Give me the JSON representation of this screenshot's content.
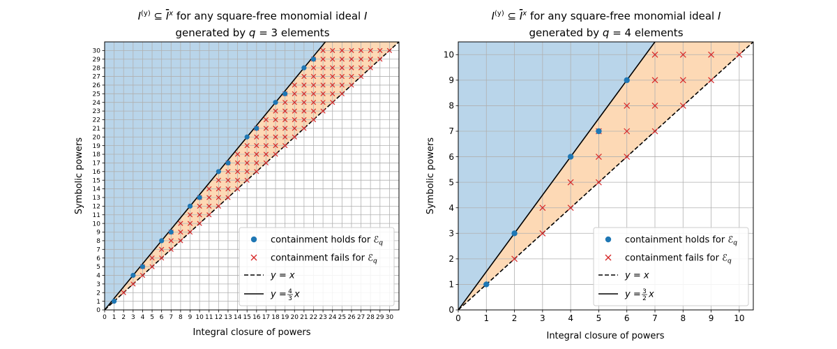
{
  "chart_data": [
    {
      "type": "scatter",
      "title": "I^(y) ⊆ Ī^x for any square-free monomial ideal I",
      "title_line2": "generated by q = 3 elements",
      "xlabel": "Integral closure of powers",
      "ylabel": "Symbolic powers",
      "xlim": [
        0,
        31
      ],
      "ylim": [
        0,
        31
      ],
      "xticks": [
        0,
        1,
        2,
        3,
        4,
        5,
        6,
        7,
        8,
        9,
        10,
        11,
        12,
        13,
        14,
        15,
        16,
        17,
        18,
        19,
        20,
        21,
        22,
        23,
        24,
        25,
        26,
        27,
        28,
        29,
        30
      ],
      "yticks": [
        0,
        1,
        2,
        3,
        4,
        5,
        6,
        7,
        8,
        9,
        10,
        11,
        12,
        13,
        14,
        15,
        16,
        17,
        18,
        19,
        20,
        21,
        22,
        23,
        24,
        25,
        26,
        27,
        28,
        29,
        30
      ],
      "grid": true,
      "legend_position": "lower right",
      "lines": [
        {
          "name": "y = x",
          "slope_num": 1,
          "slope_den": 1,
          "style": "dashed",
          "color": "#000000"
        },
        {
          "name": "y = 4/3 x",
          "slope_num": 4,
          "slope_den": 3,
          "style": "solid",
          "color": "#000000"
        }
      ],
      "regions": {
        "above_steep": "#b9d5ea",
        "between_lines": "#fdd9b5"
      },
      "series": [
        {
          "name": "containment holds for E_q",
          "marker": "circle",
          "color": "#1f77b4",
          "points": [
            [
              1,
              1
            ],
            [
              3,
              4
            ],
            [
              4,
              5
            ],
            [
              6,
              8
            ],
            [
              7,
              9
            ],
            [
              9,
              12
            ],
            [
              10,
              13
            ],
            [
              12,
              16
            ],
            [
              13,
              17
            ],
            [
              15,
              20
            ],
            [
              16,
              21
            ],
            [
              18,
              24
            ],
            [
              19,
              25
            ],
            [
              21,
              28
            ],
            [
              22,
              29
            ]
          ]
        },
        {
          "name": "containment fails for E_q",
          "marker": "x",
          "color": "#d62728",
          "rule": "all integer (x, y) with x >= 2, x <= y < 4x/3, y <= 30"
        }
      ]
    },
    {
      "type": "scatter",
      "title": "I^(y) ⊆ Ī^x for any square-free monomial ideal I",
      "title_line2": "generated by q = 4 elements",
      "xlabel": "Integral closure of powers",
      "ylabel": "Symbolic powers",
      "xlim": [
        0,
        10.5
      ],
      "ylim": [
        0,
        10.5
      ],
      "xticks": [
        0,
        1,
        2,
        3,
        4,
        5,
        6,
        7,
        8,
        9,
        10
      ],
      "yticks": [
        0,
        1,
        2,
        3,
        4,
        5,
        6,
        7,
        8,
        9,
        10
      ],
      "grid": true,
      "legend_position": "lower right",
      "lines": [
        {
          "name": "y = x",
          "slope_num": 1,
          "slope_den": 1,
          "style": "dashed",
          "color": "#000000"
        },
        {
          "name": "y = 3/2 x",
          "slope_num": 3,
          "slope_den": 2,
          "style": "solid",
          "color": "#000000"
        }
      ],
      "regions": {
        "above_steep": "#b9d5ea",
        "between_lines": "#fdd9b5"
      },
      "series": [
        {
          "name": "containment holds for E_q",
          "marker": "circle",
          "color": "#1f77b4",
          "points": [
            [
              1,
              1
            ],
            [
              2,
              3
            ],
            [
              4,
              6
            ],
            [
              5,
              7
            ],
            [
              6,
              9
            ]
          ]
        },
        {
          "name": "containment fails for E_q",
          "marker": "x",
          "color": "#d62728",
          "rule": "all integer (x, y) with x >= 2, x <= y < 3x/2, y <= 10"
        }
      ]
    }
  ]
}
